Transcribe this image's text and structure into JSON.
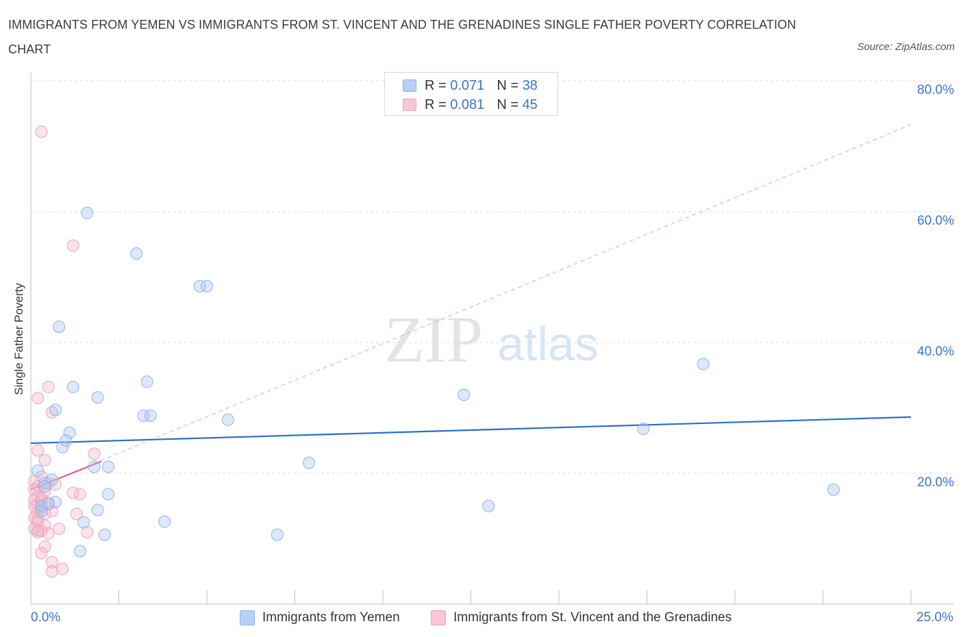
{
  "title": "IMMIGRANTS FROM YEMEN VS IMMIGRANTS FROM ST. VINCENT AND THE GRENADINES SINGLE FATHER POVERTY CORRELATION CHART",
  "source": "Source: ZipAtlas.com",
  "watermark": {
    "zip": "ZIP",
    "atlas": "atlas"
  },
  "legend": {
    "r_label": "R =",
    "n_label": "N =",
    "series1": {
      "r": "0.071",
      "n": "38"
    },
    "series2": {
      "r": "0.081",
      "n": "45"
    }
  },
  "chart_data": {
    "type": "scatter",
    "title": "IMMIGRANTS FROM YEMEN VS IMMIGRANTS FROM ST. VINCENT AND THE GRENADINES SINGLE FATHER POVERTY CORRELATION CHART",
    "xlabel": "",
    "ylabel": "Single Father Poverty",
    "xlim": [
      0,
      25
    ],
    "ylim": [
      0,
      80
    ],
    "x_tick_labels": [
      "0.0%",
      "25.0%"
    ],
    "y_ticks": [
      20,
      40,
      60,
      80
    ],
    "y_tick_labels": [
      "20.0%",
      "40.0%",
      "60.0%",
      "80.0%"
    ],
    "grid": true,
    "legend_position": "top-center",
    "colors": {
      "series1": "#8fb2e6",
      "series1_line": "#2a6dcc",
      "series2": "#eba3bb",
      "series2_line": "#e0608c"
    },
    "series": [
      {
        "name": "Immigrants from Yemen",
        "trend": {
          "x": [
            0,
            25
          ],
          "y": [
            24.6,
            28.6
          ]
        },
        "points": [
          [
            1.6,
            59.8
          ],
          [
            3.0,
            53.6
          ],
          [
            4.8,
            48.6
          ],
          [
            5.0,
            48.6
          ],
          [
            0.8,
            42.4
          ],
          [
            19.1,
            36.7
          ],
          [
            1.2,
            33.2
          ],
          [
            3.3,
            34.0
          ],
          [
            1.9,
            31.6
          ],
          [
            12.3,
            32.0
          ],
          [
            0.7,
            29.7
          ],
          [
            3.2,
            28.8
          ],
          [
            3.4,
            28.8
          ],
          [
            5.6,
            28.2
          ],
          [
            17.4,
            26.8
          ],
          [
            1.1,
            26.2
          ],
          [
            1.0,
            25.0
          ],
          [
            0.9,
            24.0
          ],
          [
            7.9,
            21.6
          ],
          [
            1.8,
            21.0
          ],
          [
            2.2,
            21.0
          ],
          [
            0.2,
            20.4
          ],
          [
            0.6,
            19.0
          ],
          [
            0.4,
            18.5
          ],
          [
            2.2,
            16.8
          ],
          [
            0.7,
            15.6
          ],
          [
            0.3,
            15.0
          ],
          [
            0.5,
            15.3
          ],
          [
            1.9,
            14.4
          ],
          [
            0.3,
            14.2
          ],
          [
            13.0,
            15.0
          ],
          [
            3.8,
            12.6
          ],
          [
            1.5,
            12.5
          ],
          [
            2.1,
            10.6
          ],
          [
            7.0,
            10.6
          ],
          [
            1.4,
            8.1
          ],
          [
            22.8,
            17.5
          ],
          [
            0.4,
            18.0
          ]
        ]
      },
      {
        "name": "Immigrants from St. Vincent and the Grenadines",
        "trend": {
          "x": [
            0,
            2.0
          ],
          "y": [
            17.5,
            21.8
          ]
        },
        "trend_extended": {
          "x": [
            0,
            25
          ],
          "y": [
            17.5,
            73.3
          ]
        },
        "points": [
          [
            0.3,
            72.2
          ],
          [
            1.2,
            54.8
          ],
          [
            0.5,
            33.2
          ],
          [
            0.2,
            31.5
          ],
          [
            0.6,
            29.3
          ],
          [
            1.8,
            23.0
          ],
          [
            0.2,
            23.5
          ],
          [
            0.4,
            22.0
          ],
          [
            0.3,
            19.5
          ],
          [
            0.1,
            18.8
          ],
          [
            0.5,
            18.5
          ],
          [
            0.2,
            18.0
          ],
          [
            0.1,
            17.5
          ],
          [
            0.4,
            17.3
          ],
          [
            1.2,
            17.0
          ],
          [
            1.4,
            16.8
          ],
          [
            0.2,
            16.5
          ],
          [
            0.1,
            16.0
          ],
          [
            0.3,
            15.8
          ],
          [
            0.5,
            15.5
          ],
          [
            0.2,
            15.2
          ],
          [
            0.1,
            15.0
          ],
          [
            0.3,
            14.8
          ],
          [
            0.6,
            14.2
          ],
          [
            0.2,
            14.0
          ],
          [
            0.4,
            13.8
          ],
          [
            1.3,
            13.8
          ],
          [
            0.1,
            13.2
          ],
          [
            0.2,
            12.5
          ],
          [
            0.4,
            12.0
          ],
          [
            0.1,
            11.5
          ],
          [
            0.3,
            11.2
          ],
          [
            0.2,
            11.0
          ],
          [
            0.8,
            11.5
          ],
          [
            1.6,
            11.0
          ],
          [
            0.5,
            10.8
          ],
          [
            0.4,
            8.8
          ],
          [
            0.3,
            7.8
          ],
          [
            0.6,
            6.4
          ],
          [
            0.9,
            5.4
          ],
          [
            0.6,
            5.0
          ],
          [
            0.2,
            11.3
          ],
          [
            0.3,
            16.2
          ],
          [
            0.7,
            18.3
          ],
          [
            0.2,
            13.0
          ]
        ]
      }
    ]
  }
}
